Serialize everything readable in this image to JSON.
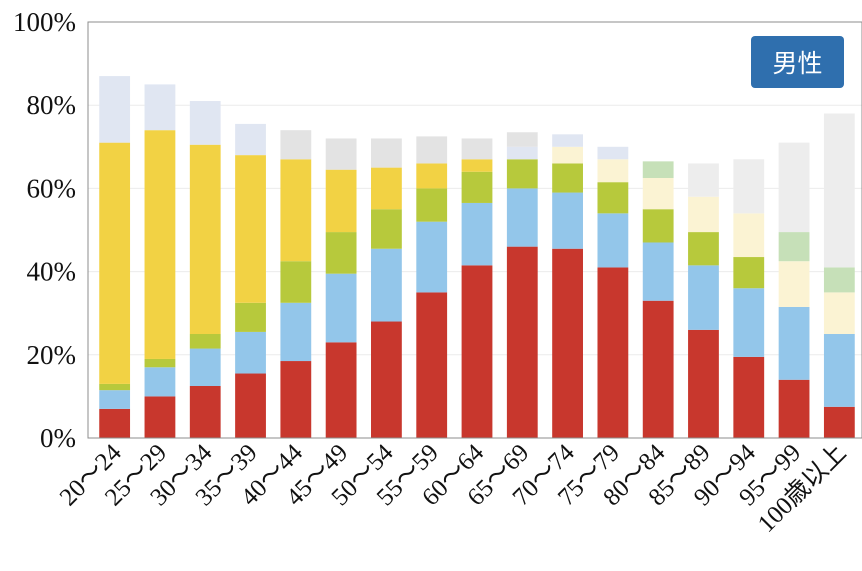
{
  "chart_data": {
    "type": "bar",
    "stacked": true,
    "badge": "男性",
    "categories": [
      "20～24",
      "25～29",
      "30～34",
      "35～39",
      "40～44",
      "45～49",
      "50～54",
      "55～59",
      "60～64",
      "65～69",
      "70～74",
      "75～79",
      "80～84",
      "85～89",
      "90～94",
      "95～99",
      "100歳以上"
    ],
    "ylim": [
      0,
      100
    ],
    "yticks": [
      "0%",
      "20%",
      "40%",
      "60%",
      "80%",
      "100%"
    ],
    "grid": true,
    "legend": "none",
    "series": [
      {
        "color": "#c8372d",
        "values": [
          7,
          10,
          12.5,
          15.5,
          18.5,
          23,
          28,
          35,
          41.5,
          46,
          45.5,
          41,
          33,
          26,
          19.5,
          14,
          7.5
        ]
      },
      {
        "color": "#93c6ea",
        "values": [
          4.5,
          7,
          9,
          10,
          14,
          16.5,
          17.5,
          17,
          15,
          14,
          13.5,
          13,
          14,
          15.5,
          16.5,
          17.5,
          17.5
        ]
      },
      {
        "color": "#b7c93c",
        "values": [
          1.5,
          2,
          3.5,
          7,
          10,
          10,
          9.5,
          8,
          7.5,
          7,
          7,
          7.5,
          8,
          8,
          7.5,
          0,
          0
        ]
      },
      {
        "color": "#f2d244",
        "values": [
          58,
          55,
          45.5,
          35.5,
          24.5,
          15,
          10,
          6,
          3,
          0,
          0,
          0,
          0,
          0,
          0,
          0,
          0
        ]
      },
      {
        "color": "#fbf3d3",
        "values": [
          0,
          0,
          0,
          0,
          0,
          0,
          0,
          0,
          0,
          0,
          4,
          5.5,
          7.5,
          8.5,
          10.5,
          11,
          10
        ]
      },
      {
        "color": "#c6e0b8",
        "values": [
          0,
          0,
          0,
          0,
          0,
          0,
          0,
          0,
          0,
          0,
          0,
          0,
          4,
          0,
          0,
          7,
          6
        ]
      },
      {
        "color": "#e0e6f2",
        "values": [
          16,
          11,
          10.5,
          7.5,
          0,
          0,
          0,
          0,
          0,
          3,
          3,
          3,
          0,
          0,
          0,
          0,
          0
        ]
      },
      {
        "color": "#e3e3e3",
        "values": [
          0,
          0,
          0,
          0,
          7,
          7.5,
          7,
          6.5,
          5,
          3.5,
          0,
          0,
          0,
          0,
          0,
          0,
          0
        ]
      },
      {
        "color": "#ededed",
        "values": [
          0,
          0,
          0,
          0,
          0,
          0,
          0,
          0,
          0,
          0,
          0,
          0,
          0,
          8,
          13,
          21.5,
          37
        ]
      }
    ],
    "colors": {
      "badge_bg": "#2f6fae",
      "grid": "#ececec",
      "frame": "#8c8c8c"
    }
  }
}
